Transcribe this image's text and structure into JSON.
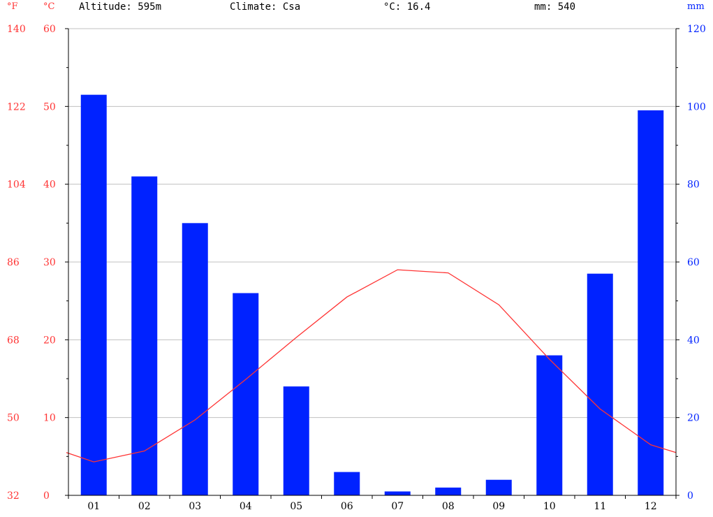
{
  "header": {
    "fahrenheit_unit": "°F",
    "celsius_unit": "°C",
    "altitude": "Altitude: 595m",
    "climate": "Climate: Csa",
    "mean_temp": "°C: 16.4",
    "annual_precip": "mm: 540",
    "precip_unit": "mm"
  },
  "colors": {
    "temperature": "#ff3333",
    "precipitation": "#0022ff",
    "grid": "#c0c0c0",
    "axis": "#000000"
  },
  "chart_data": {
    "type": "bar",
    "categories": [
      "01",
      "02",
      "03",
      "04",
      "05",
      "06",
      "07",
      "08",
      "09",
      "10",
      "11",
      "12"
    ],
    "series": [
      {
        "values": [
          103,
          82,
          70,
          52,
          28,
          6,
          1,
          2,
          4,
          36,
          57,
          99
        ],
        "axis": "right",
        "kind": "bar"
      },
      {
        "values": [
          4.3,
          5.7,
          9.7,
          14.9,
          20.3,
          25.5,
          29.0,
          28.6,
          24.5,
          17.5,
          11.1,
          6.5
        ],
        "axis": "left",
        "kind": "line"
      }
    ],
    "x_extend_start": 5.5,
    "x_extend_end": 5.5,
    "ylim_left": [
      0,
      60
    ],
    "ylim_right": [
      0,
      120
    ],
    "yticks_c": [
      "0",
      "10",
      "20",
      "30",
      "40",
      "50",
      "60"
    ],
    "yticks_f": [
      "32",
      "50",
      "68",
      "86",
      "104",
      "122",
      "140"
    ],
    "yticks_mm": [
      "0",
      "20",
      "40",
      "60",
      "80",
      "100",
      "120"
    ],
    "grid": true
  }
}
